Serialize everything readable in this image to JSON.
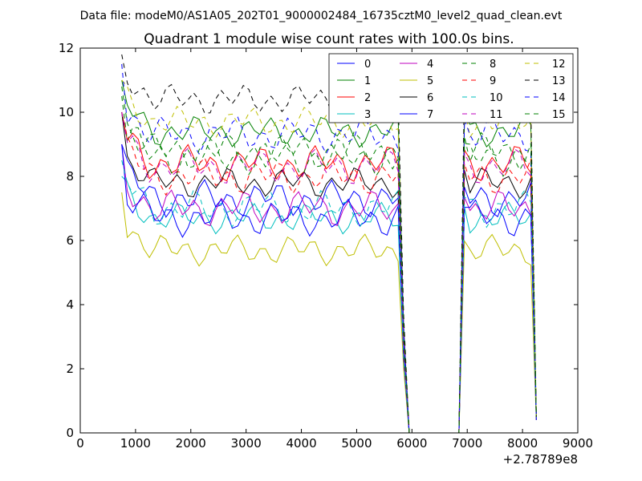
{
  "header": {
    "file_label": "Data file: modeM0/AS1A05_202T01_9000002484_16735cztM0_level2_quad_clean.evt"
  },
  "chart_data": {
    "type": "line",
    "title": "Quadrant 1 module wise count rates with 100.0s bins.",
    "xlabel": "",
    "ylabel": "",
    "x_offset_label": "+2.78789e8",
    "xlim": [
      0,
      9000
    ],
    "ylim": [
      0,
      12
    ],
    "x_ticks": [
      0,
      1000,
      2000,
      3000,
      4000,
      5000,
      6000,
      7000,
      8000,
      9000
    ],
    "y_ticks": [
      0,
      2,
      4,
      6,
      8,
      10,
      12
    ],
    "grid": false,
    "legend_position": "top-right",
    "legend_columns": 4,
    "x": [
      750,
      850,
      950,
      1050,
      1150,
      1250,
      1350,
      1450,
      1550,
      1650,
      1750,
      1850,
      1950,
      2050,
      2150,
      2250,
      2350,
      2450,
      2550,
      2650,
      2750,
      2850,
      2950,
      3050,
      3150,
      3250,
      3350,
      3450,
      3550,
      3650,
      3750,
      3850,
      3950,
      4050,
      4150,
      4250,
      4350,
      4450,
      4550,
      4650,
      4750,
      4850,
      4950,
      5050,
      5150,
      5250,
      5350,
      5450,
      5550,
      5650,
      5750,
      5850,
      5950,
      6050,
      6150,
      6250,
      6350,
      6450,
      6550,
      6650,
      6750,
      6850,
      6950,
      7050,
      7150,
      7250,
      7350,
      7450,
      7550,
      7650,
      7750,
      7850,
      7950,
      8050,
      8150,
      8250
    ],
    "series": [
      {
        "name": "0",
        "color": "#0000ff",
        "dash": "solid",
        "base": 7.3,
        "amp": 0.6,
        "first": 9.0,
        "last": 0.5
      },
      {
        "name": "1",
        "color": "#008000",
        "dash": "solid",
        "base": 9.4,
        "amp": 0.5,
        "first": 11.0,
        "last": 0.5
      },
      {
        "name": "2",
        "color": "#ff0000",
        "dash": "solid",
        "base": 8.4,
        "amp": 0.6,
        "first": 10.0,
        "last": 0.5
      },
      {
        "name": "3",
        "color": "#00bfbf",
        "dash": "solid",
        "base": 6.7,
        "amp": 0.5,
        "first": 8.0,
        "last": 0.4
      },
      {
        "name": "4",
        "color": "#bf00bf",
        "dash": "solid",
        "base": 7.0,
        "amp": 0.6,
        "first": 9.0,
        "last": 0.4
      },
      {
        "name": "5",
        "color": "#bfbf00",
        "dash": "solid",
        "base": 5.7,
        "amp": 0.5,
        "first": 7.5,
        "last": 0.4
      },
      {
        "name": "6",
        "color": "#000000",
        "dash": "solid",
        "base": 7.8,
        "amp": 0.5,
        "first": 10.0,
        "last": 0.5
      },
      {
        "name": "7",
        "color": "#0000ff",
        "dash": "solid",
        "base": 6.7,
        "amp": 0.6,
        "first": 9.0,
        "last": 0.4
      },
      {
        "name": "8",
        "color": "#008000",
        "dash": "dashed",
        "base": 8.6,
        "amp": 0.6,
        "first": 10.5,
        "last": 0.5
      },
      {
        "name": "9",
        "color": "#ff0000",
        "dash": "dashed",
        "base": 8.0,
        "amp": 0.6,
        "first": 10.0,
        "last": 0.5
      },
      {
        "name": "10",
        "color": "#00bfbf",
        "dash": "dashed",
        "base": 7.0,
        "amp": 0.6,
        "first": 8.5,
        "last": 0.4
      },
      {
        "name": "11",
        "color": "#bf00bf",
        "dash": "dashed",
        "base": 8.3,
        "amp": 0.6,
        "first": 10.0,
        "last": 0.5
      },
      {
        "name": "12",
        "color": "#bfbf00",
        "dash": "dashed",
        "base": 9.7,
        "amp": 0.5,
        "first": 11.0,
        "last": 0.5
      },
      {
        "name": "13",
        "color": "#000000",
        "dash": "dashed",
        "base": 10.4,
        "amp": 0.5,
        "first": 11.8,
        "last": 0.5
      },
      {
        "name": "14",
        "color": "#0000ff",
        "dash": "dashed",
        "base": 9.3,
        "amp": 0.6,
        "first": 11.5,
        "last": 0.5
      },
      {
        "name": "15",
        "color": "#008000",
        "dash": "dashed",
        "base": 8.8,
        "amp": 0.6,
        "first": 10.8,
        "last": 0.5
      }
    ]
  }
}
